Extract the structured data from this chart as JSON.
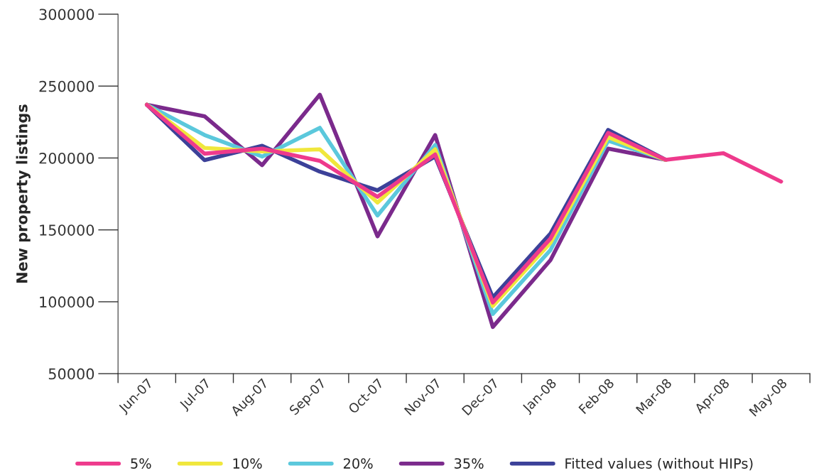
{
  "chart_data": {
    "type": "line",
    "ylabel": "New property listings",
    "categories": [
      "Jun-07",
      "Jul-07",
      "Aug-07",
      "Sep-07",
      "Oct-07",
      "Nov-07",
      "Dec-07",
      "Jan-08",
      "Feb-08",
      "Mar-08",
      "Apr-08",
      "May-08"
    ],
    "series": [
      {
        "name": "5%",
        "color": "#ee3a8c",
        "values": [
          237000,
          203000,
          206500,
          198000,
          173000,
          202500,
          99500,
          144000,
          217500,
          198700,
          203300,
          183600
        ]
      },
      {
        "name": "10%",
        "color": "#f0e73c",
        "values": [
          237000,
          207000,
          204500,
          206000,
          169000,
          206000,
          97000,
          141000,
          214500,
          198700,
          null,
          null
        ]
      },
      {
        "name": "20%",
        "color": "#5bc8dc",
        "values": [
          237000,
          216000,
          201000,
          221000,
          160000,
          209000,
          91500,
          136000,
          212000,
          198700,
          null,
          null
        ]
      },
      {
        "name": "35%",
        "color": "#7b2a8c",
        "values": [
          237000,
          229000,
          195000,
          244000,
          145500,
          216000,
          82500,
          129000,
          206500,
          198700,
          null,
          null
        ]
      },
      {
        "name": "Fitted values (without HIPs)",
        "color": "#3c4199",
        "values": [
          237000,
          198500,
          208500,
          190500,
          177500,
          201000,
          103000,
          147500,
          219500,
          198700,
          null,
          null
        ]
      }
    ],
    "ylim": [
      50000,
      300000
    ],
    "yticks": [
      50000,
      100000,
      150000,
      200000,
      250000,
      300000
    ],
    "grid": false,
    "legend": "bottom",
    "marker": "none",
    "line_style": "solid"
  }
}
